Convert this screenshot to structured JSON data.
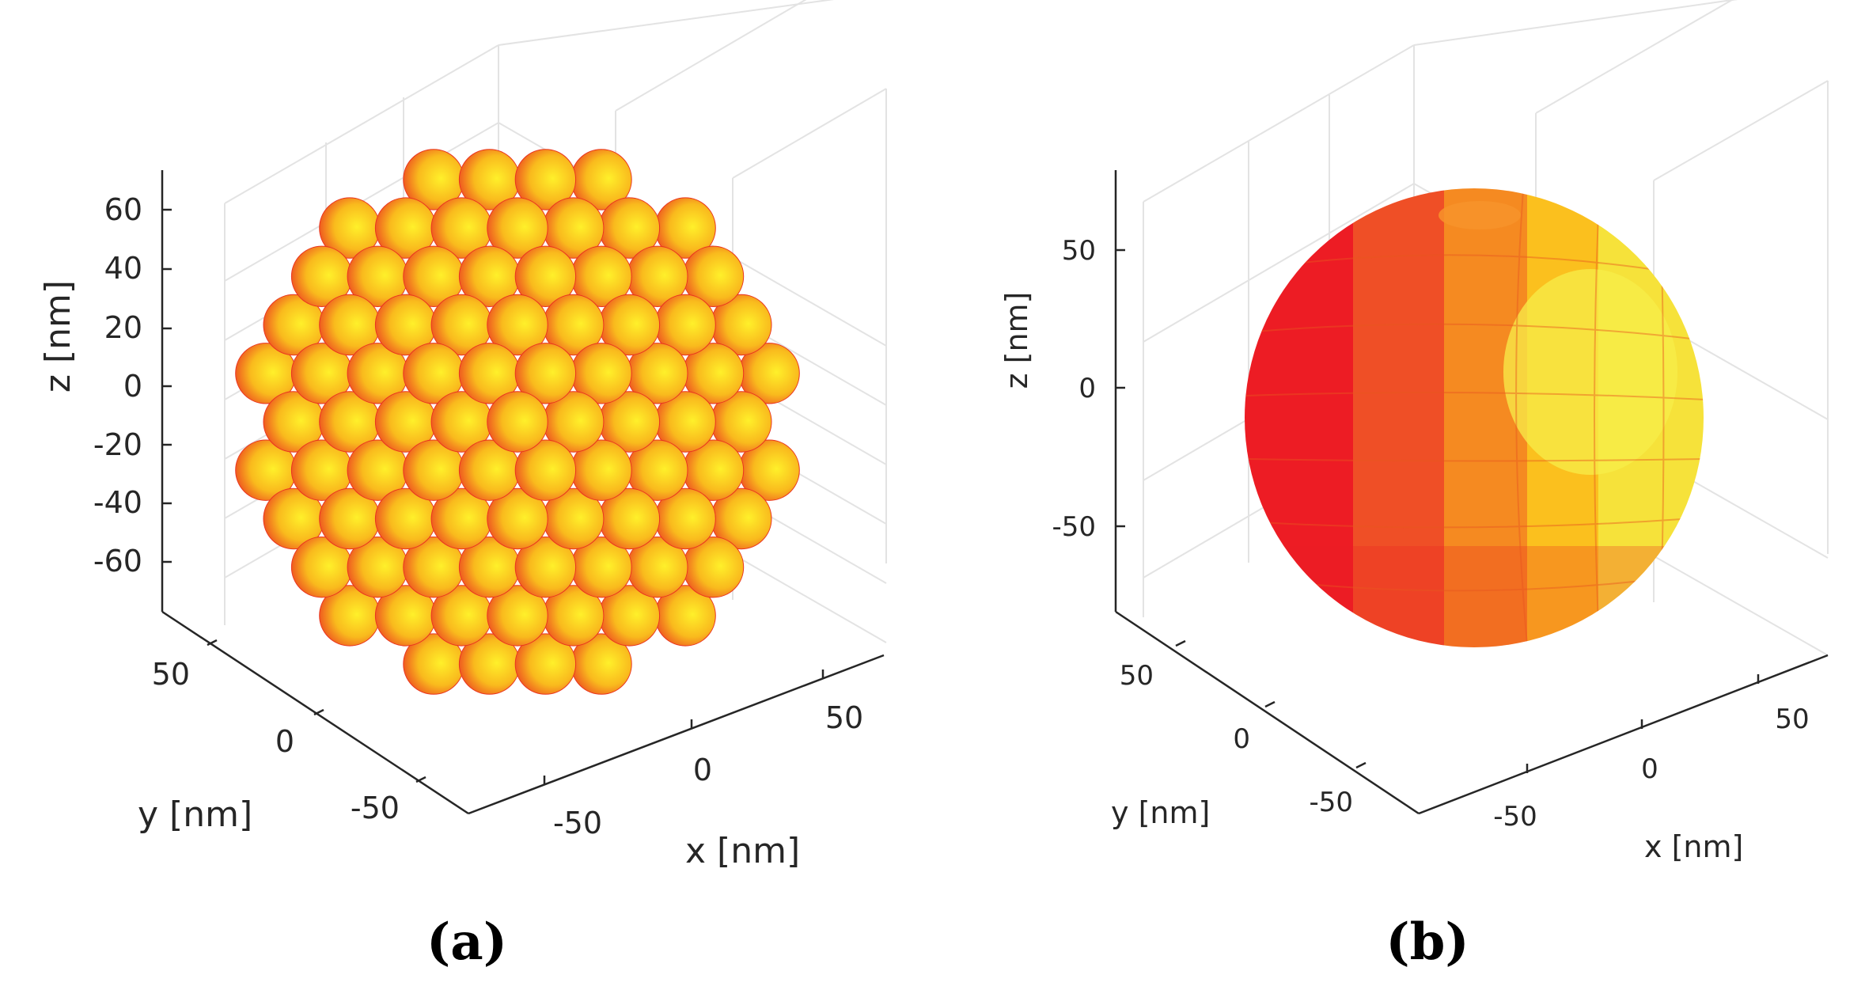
{
  "chart_data": [
    {
      "type": "scatter",
      "subtype": "3d-packed-spheres",
      "caption": "(a)",
      "xlabel": "x [nm]",
      "ylabel": "y [nm]",
      "zlabel": "z [nm]",
      "xticks": [
        "-50",
        "0",
        "50"
      ],
      "yticks": [
        "-50",
        "0",
        "50"
      ],
      "zticks": [
        "60",
        "40",
        "20",
        "0",
        "-20",
        "-40",
        "-60"
      ],
      "xlim": [
        -75,
        75
      ],
      "ylim": [
        -75,
        75
      ],
      "zlim": [
        -75,
        75
      ],
      "cluster_radius_nm": 65,
      "particle_radius_nm": 7,
      "grid": true,
      "colormap": [
        "#ed1c24",
        "#ffeb23"
      ]
    },
    {
      "type": "surface",
      "subtype": "3d-sphere",
      "caption": "(b)",
      "xlabel": "x [nm]",
      "ylabel": "y [nm]",
      "zlabel": "z [nm]",
      "xticks": [
        "-50",
        "0",
        "50"
      ],
      "yticks": [
        "-50",
        "0",
        "50"
      ],
      "zticks": [
        "50",
        "0",
        "-50"
      ],
      "xlim": [
        -75,
        75
      ],
      "ylim": [
        -75,
        75
      ],
      "zlim": [
        -75,
        75
      ],
      "sphere_radius_nm": 75,
      "grid": true,
      "colormap": [
        "#ed1c24",
        "#ffeb23"
      ]
    }
  ]
}
